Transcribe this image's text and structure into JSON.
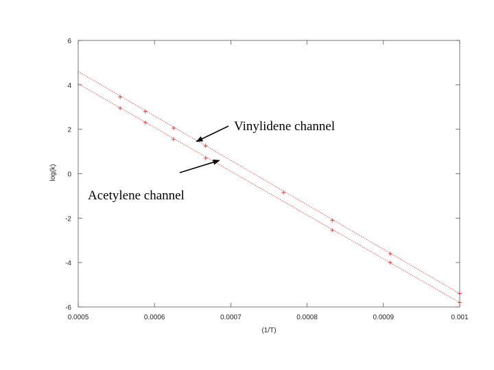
{
  "chart_data": {
    "type": "scatter",
    "xlabel": "(1/T)",
    "ylabel": "log(k)",
    "xlim": [
      0.0005,
      0.001
    ],
    "ylim": [
      -6,
      6
    ],
    "x_ticks": [
      "0.0005",
      "0.0006",
      "0.0007",
      "0.0008",
      "0.0009",
      "0.001"
    ],
    "y_ticks": [
      "-6",
      "-4",
      "-2",
      "0",
      "2",
      "4",
      "6"
    ],
    "grid": false,
    "series": [
      {
        "color": "#e03030",
        "points": [
          {
            "x": 0.000555,
            "y": 3.45
          },
          {
            "x": 0.000588,
            "y": 2.8
          },
          {
            "x": 0.000625,
            "y": 2.05
          },
          {
            "x": 0.000667,
            "y": 1.25
          },
          {
            "x": 0.000833,
            "y": -2.1
          },
          {
            "x": 0.000909,
            "y": -3.6
          },
          {
            "x": 0.001,
            "y": -5.4
          }
        ],
        "fit": {
          "x": [
            0.0005,
            0.001
          ],
          "y": [
            4.6,
            -5.4
          ]
        }
      },
      {
        "color": "#e03030",
        "points": [
          {
            "x": 0.000555,
            "y": 2.95
          },
          {
            "x": 0.000588,
            "y": 2.3
          },
          {
            "x": 0.000625,
            "y": 1.55
          },
          {
            "x": 0.000667,
            "y": 0.7
          },
          {
            "x": 0.000769,
            "y": -0.85
          },
          {
            "x": 0.000833,
            "y": -2.55
          },
          {
            "x": 0.000909,
            "y": -4.0
          },
          {
            "x": 0.001,
            "y": -5.8
          }
        ],
        "fit": {
          "x": [
            0.0005,
            0.001
          ],
          "y": [
            4.05,
            -5.8
          ]
        }
      }
    ],
    "annotations": [
      {
        "text": "Vinylidene channel",
        "arrow_to": {
          "x": 0.000655,
          "y": 1.45
        }
      },
      {
        "text": "Acetylene channel",
        "arrow_to": {
          "x": 0.000685,
          "y": 0.6
        }
      }
    ]
  }
}
